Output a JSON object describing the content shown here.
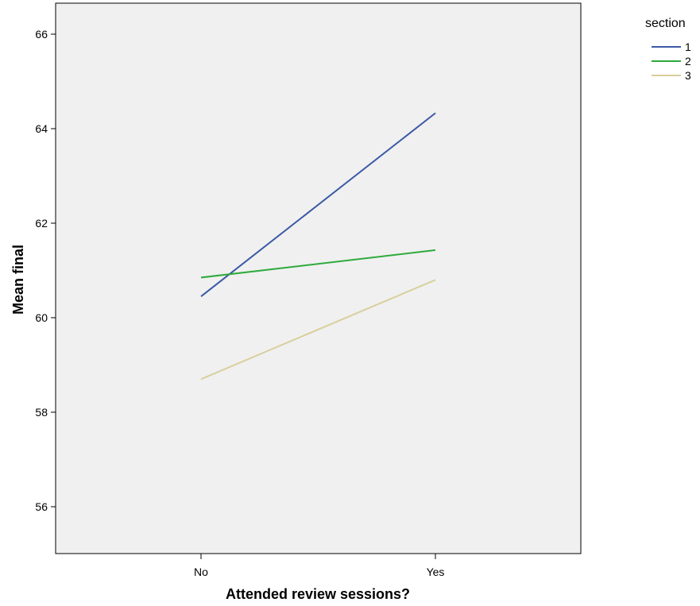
{
  "chart_data": {
    "type": "line",
    "xlabel": "Attended review sessions?",
    "ylabel": "Mean final",
    "categories": [
      "No",
      "Yes"
    ],
    "ylim": [
      55,
      66.5
    ],
    "yticks": [
      56,
      58,
      60,
      62,
      64,
      66
    ],
    "grid": false,
    "legend": {
      "title": "section",
      "position": "top-right"
    },
    "colors": {
      "plot_background": "#f0f0f0"
    },
    "series": [
      {
        "name": "1",
        "color": "#3c59a6",
        "values": [
          60.45,
          64.33
        ]
      },
      {
        "name": "2",
        "color": "#2eaa3c",
        "values": [
          60.85,
          61.43
        ]
      },
      {
        "name": "3",
        "color": "#d8cf9c",
        "values": [
          58.7,
          60.8
        ]
      }
    ]
  }
}
